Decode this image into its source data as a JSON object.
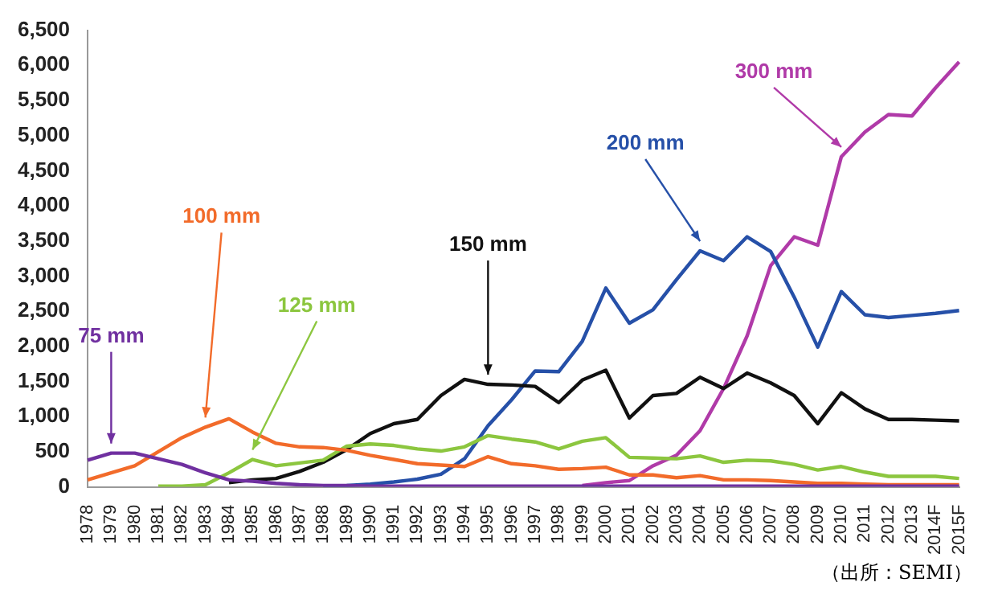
{
  "chart_data": {
    "type": "line",
    "categories": [
      "1978",
      "1979",
      "1980",
      "1981",
      "1982",
      "1983",
      "1984",
      "1985",
      "1986",
      "1987",
      "1988",
      "1989",
      "1990",
      "1991",
      "1992",
      "1993",
      "1994",
      "1995",
      "1996",
      "1997",
      "1998",
      "1999",
      "2000",
      "2001",
      "2002",
      "2003",
      "2004",
      "2005",
      "2006",
      "2007",
      "2008",
      "2009",
      "2010",
      "2011",
      "2012",
      "2013",
      "2014F",
      "2015F"
    ],
    "series": [
      {
        "color": "#7030a0",
        "values": [
          380,
          480,
          480,
          400,
          320,
          200,
          100,
          80,
          50,
          30,
          20,
          20,
          10,
          10,
          10,
          10,
          10,
          10,
          10,
          10,
          10,
          10,
          10,
          10,
          10,
          10,
          10,
          10,
          10,
          10,
          10,
          10,
          10,
          10,
          10,
          10,
          10,
          10
        ]
      },
      {
        "color": "#f26b2a",
        "values": [
          100,
          200,
          300,
          500,
          700,
          850,
          970,
          780,
          620,
          570,
          560,
          520,
          450,
          390,
          330,
          310,
          290,
          430,
          330,
          300,
          250,
          260,
          280,
          170,
          170,
          130,
          160,
          100,
          100,
          90,
          70,
          50,
          50,
          40,
          30,
          30,
          30,
          30
        ]
      },
      {
        "color": "#8cc63f",
        "values": [
          null,
          null,
          null,
          10,
          10,
          30,
          200,
          390,
          300,
          340,
          380,
          580,
          610,
          590,
          540,
          510,
          570,
          730,
          680,
          640,
          540,
          650,
          700,
          420,
          410,
          400,
          440,
          350,
          380,
          370,
          320,
          240,
          290,
          210,
          150,
          150,
          150,
          120
        ]
      },
      {
        "color": "#111111",
        "values": [
          null,
          null,
          null,
          null,
          null,
          null,
          60,
          100,
          120,
          220,
          350,
          530,
          760,
          900,
          960,
          1300,
          1530,
          1460,
          1450,
          1430,
          1200,
          1520,
          1660,
          980,
          1300,
          1330,
          1560,
          1400,
          1620,
          1480,
          1300,
          900,
          1340,
          1110,
          960,
          960,
          950,
          940
        ]
      },
      {
        "color": "#2650a8",
        "values": [
          null,
          null,
          null,
          null,
          null,
          null,
          null,
          null,
          null,
          null,
          10,
          20,
          40,
          70,
          110,
          180,
          400,
          870,
          1240,
          1650,
          1640,
          2070,
          2830,
          2330,
          2520,
          2950,
          3360,
          3220,
          3560,
          3350,
          2700,
          1990,
          2780,
          2450,
          2410,
          2440,
          2470,
          2510
        ]
      },
      {
        "color": "#b03aa8",
        "values": [
          null,
          null,
          null,
          null,
          null,
          null,
          null,
          null,
          null,
          null,
          null,
          null,
          null,
          null,
          null,
          null,
          null,
          null,
          null,
          null,
          null,
          20,
          60,
          90,
          300,
          450,
          800,
          1400,
          2150,
          3150,
          3560,
          3440,
          4700,
          5050,
          5300,
          5280,
          5680,
          6050
        ]
      }
    ],
    "ylim": [
      0,
      6500
    ],
    "yticks": [
      {
        "value": 0,
        "label": "0"
      },
      {
        "value": 500,
        "label": "500"
      },
      {
        "value": 1000,
        "label": "1,000"
      },
      {
        "value": 1500,
        "label": "1,500"
      },
      {
        "value": 2000,
        "label": "2,000"
      },
      {
        "value": 2500,
        "label": "2,500"
      },
      {
        "value": 3000,
        "label": "3,000"
      },
      {
        "value": 3500,
        "label": "3,500"
      },
      {
        "value": 4000,
        "label": "4,000"
      },
      {
        "value": 4500,
        "label": "4,500"
      },
      {
        "value": 5000,
        "label": "5,000"
      },
      {
        "value": 5500,
        "label": "5,500"
      },
      {
        "value": 6000,
        "label": "6,000"
      },
      {
        "value": 6500,
        "label": "6,500"
      }
    ],
    "grid": false,
    "legend": false,
    "marker": "none",
    "line_style": "solid",
    "annotations": [
      {
        "text": "75 mm",
        "x": "1979",
        "y": 480
      },
      {
        "text": "100 mm",
        "x": "1983",
        "y": 850
      },
      {
        "text": "125 mm",
        "x": "1985",
        "y": 390
      },
      {
        "text": "150 mm",
        "x": "1995",
        "y": 1460
      },
      {
        "text": "200 mm",
        "x": "2004",
        "y": 3360
      },
      {
        "text": "300 mm",
        "x": "2010",
        "y": 4700
      },
      "（出所：SEMI）"
    ]
  }
}
